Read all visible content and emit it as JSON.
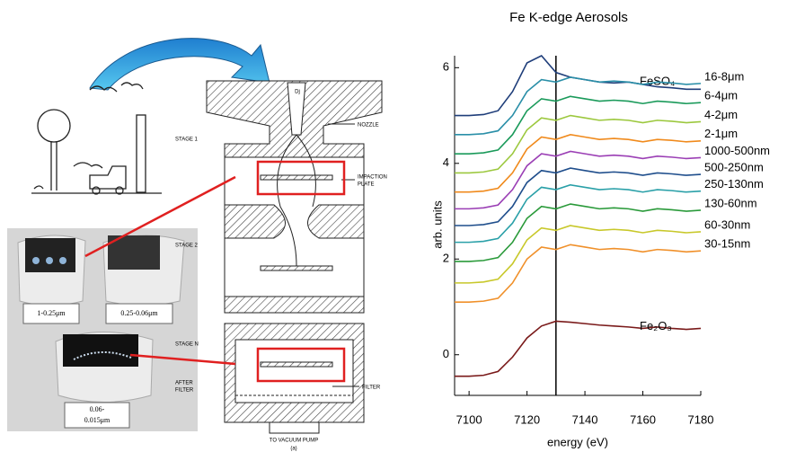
{
  "chart_data": {
    "type": "line",
    "title": "Fe K-edge Aerosols",
    "x_label": "energy (eV)",
    "y_label": "arb. units",
    "x": [
      7095,
      7100,
      7105,
      7110,
      7115,
      7120,
      7125,
      7130,
      7135,
      7140,
      7145,
      7150,
      7155,
      7160,
      7165,
      7170,
      7175,
      7180
    ],
    "xlim": [
      7095,
      7180
    ],
    "xticks": [
      7100,
      7120,
      7140,
      7160,
      7180
    ],
    "ylim": [
      -0.85,
      6.25
    ],
    "yticks": [
      0,
      2,
      4,
      6
    ],
    "vline": 7130,
    "series": [
      {
        "name": "FeSO₄",
        "color": "#1f3e7a",
        "values": [
          5.0,
          5.0,
          5.02,
          5.1,
          5.5,
          6.1,
          6.25,
          5.9,
          5.8,
          5.75,
          5.7,
          5.68,
          5.7,
          5.65,
          5.6,
          5.58,
          5.55,
          5.55
        ]
      },
      {
        "name": "16-8μm",
        "color": "#2a8fa8",
        "values": [
          4.6,
          4.6,
          4.62,
          4.68,
          5.0,
          5.5,
          5.75,
          5.7,
          5.8,
          5.75,
          5.7,
          5.72,
          5.7,
          5.65,
          5.7,
          5.68,
          5.65,
          5.67
        ]
      },
      {
        "name": "6-4μm",
        "color": "#1a9a5a",
        "values": [
          4.2,
          4.2,
          4.22,
          4.28,
          4.6,
          5.1,
          5.35,
          5.3,
          5.4,
          5.35,
          5.3,
          5.32,
          5.3,
          5.25,
          5.3,
          5.28,
          5.25,
          5.27
        ]
      },
      {
        "name": "4-2μm",
        "color": "#9cc83e",
        "values": [
          3.8,
          3.8,
          3.82,
          3.88,
          4.2,
          4.7,
          4.95,
          4.9,
          5.0,
          4.95,
          4.9,
          4.92,
          4.9,
          4.85,
          4.9,
          4.88,
          4.85,
          4.87
        ]
      },
      {
        "name": "2-1μm",
        "color": "#f08a1c",
        "values": [
          3.4,
          3.4,
          3.42,
          3.48,
          3.8,
          4.3,
          4.55,
          4.5,
          4.6,
          4.55,
          4.5,
          4.52,
          4.5,
          4.45,
          4.5,
          4.48,
          4.45,
          4.47
        ]
      },
      {
        "name": "1000-500nm",
        "color": "#9b3fb5",
        "values": [
          3.05,
          3.05,
          3.07,
          3.13,
          3.45,
          3.95,
          4.2,
          4.15,
          4.25,
          4.2,
          4.15,
          4.17,
          4.15,
          4.1,
          4.15,
          4.13,
          4.1,
          4.12
        ]
      },
      {
        "name": "500-250nm",
        "color": "#1f4e8c",
        "values": [
          2.7,
          2.7,
          2.72,
          2.78,
          3.1,
          3.6,
          3.85,
          3.8,
          3.9,
          3.85,
          3.8,
          3.82,
          3.8,
          3.75,
          3.8,
          3.78,
          3.75,
          3.77
        ]
      },
      {
        "name": "250-130nm",
        "color": "#2aa0a8",
        "values": [
          2.35,
          2.35,
          2.37,
          2.43,
          2.75,
          3.25,
          3.5,
          3.45,
          3.55,
          3.5,
          3.45,
          3.47,
          3.45,
          3.4,
          3.45,
          3.43,
          3.4,
          3.42
        ]
      },
      {
        "name": "130-60nm",
        "color": "#2a9a3a",
        "values": [
          1.95,
          1.95,
          1.97,
          2.03,
          2.35,
          2.85,
          3.1,
          3.05,
          3.15,
          3.1,
          3.05,
          3.07,
          3.05,
          3.0,
          3.05,
          3.03,
          3.0,
          3.02
        ]
      },
      {
        "name": "60-30nm",
        "color": "#c8c82a",
        "values": [
          1.5,
          1.5,
          1.52,
          1.58,
          1.9,
          2.4,
          2.65,
          2.6,
          2.7,
          2.65,
          2.6,
          2.62,
          2.6,
          2.55,
          2.6,
          2.58,
          2.55,
          2.57
        ]
      },
      {
        "name": "30-15nm",
        "color": "#f0902a",
        "values": [
          1.1,
          1.1,
          1.12,
          1.18,
          1.5,
          2.0,
          2.25,
          2.2,
          2.3,
          2.25,
          2.2,
          2.22,
          2.2,
          2.15,
          2.2,
          2.18,
          2.15,
          2.17
        ]
      },
      {
        "name": "Fe₂O₃",
        "color": "#7a1a1a",
        "values": [
          -0.45,
          -0.45,
          -0.43,
          -0.35,
          -0.05,
          0.35,
          0.6,
          0.7,
          0.68,
          0.65,
          0.62,
          0.6,
          0.58,
          0.55,
          0.58,
          0.55,
          0.53,
          0.55
        ]
      }
    ]
  },
  "photos": {
    "labels": [
      "1-0.25μm",
      "0.25-0.06μm",
      "0.06-",
      "0.015μm"
    ]
  },
  "diagram": {
    "nozzle": "NOZZLE",
    "impaction": "IMPACTION",
    "plate": "PLATE",
    "stage1": "STAGE 1",
    "stage2": "STAGE 2",
    "stageN": "STAGE N",
    "after": "AFTER",
    "after_filter": "FILTER",
    "filter": "FILTER",
    "pump": "TO VACUUM PUMP",
    "dj": "Dj",
    "caption": "(a)"
  }
}
